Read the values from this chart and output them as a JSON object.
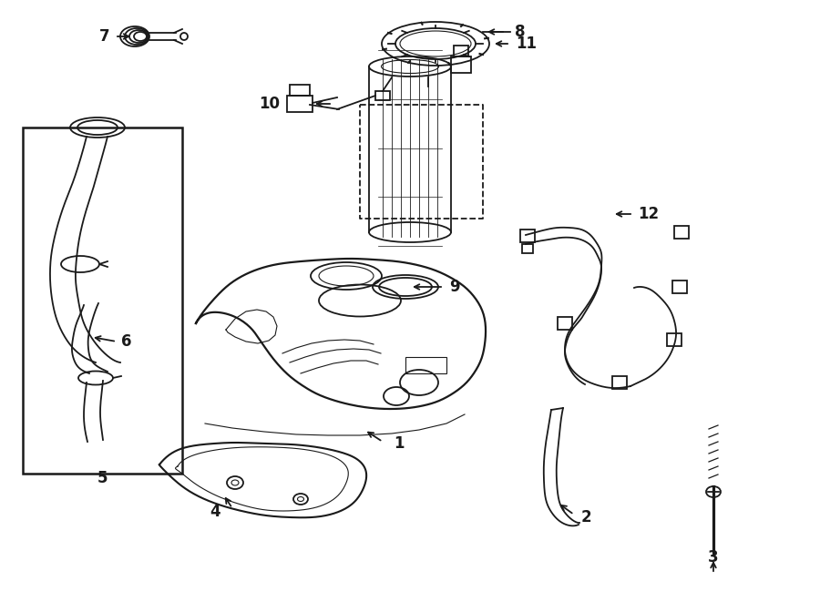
{
  "background_color": "#ffffff",
  "line_color": "#1a1a1a",
  "lw_main": 1.3,
  "lw_thin": 0.8,
  "label_fontsize": 12,
  "figsize": [
    9.0,
    6.61
  ],
  "dpi": 100
}
